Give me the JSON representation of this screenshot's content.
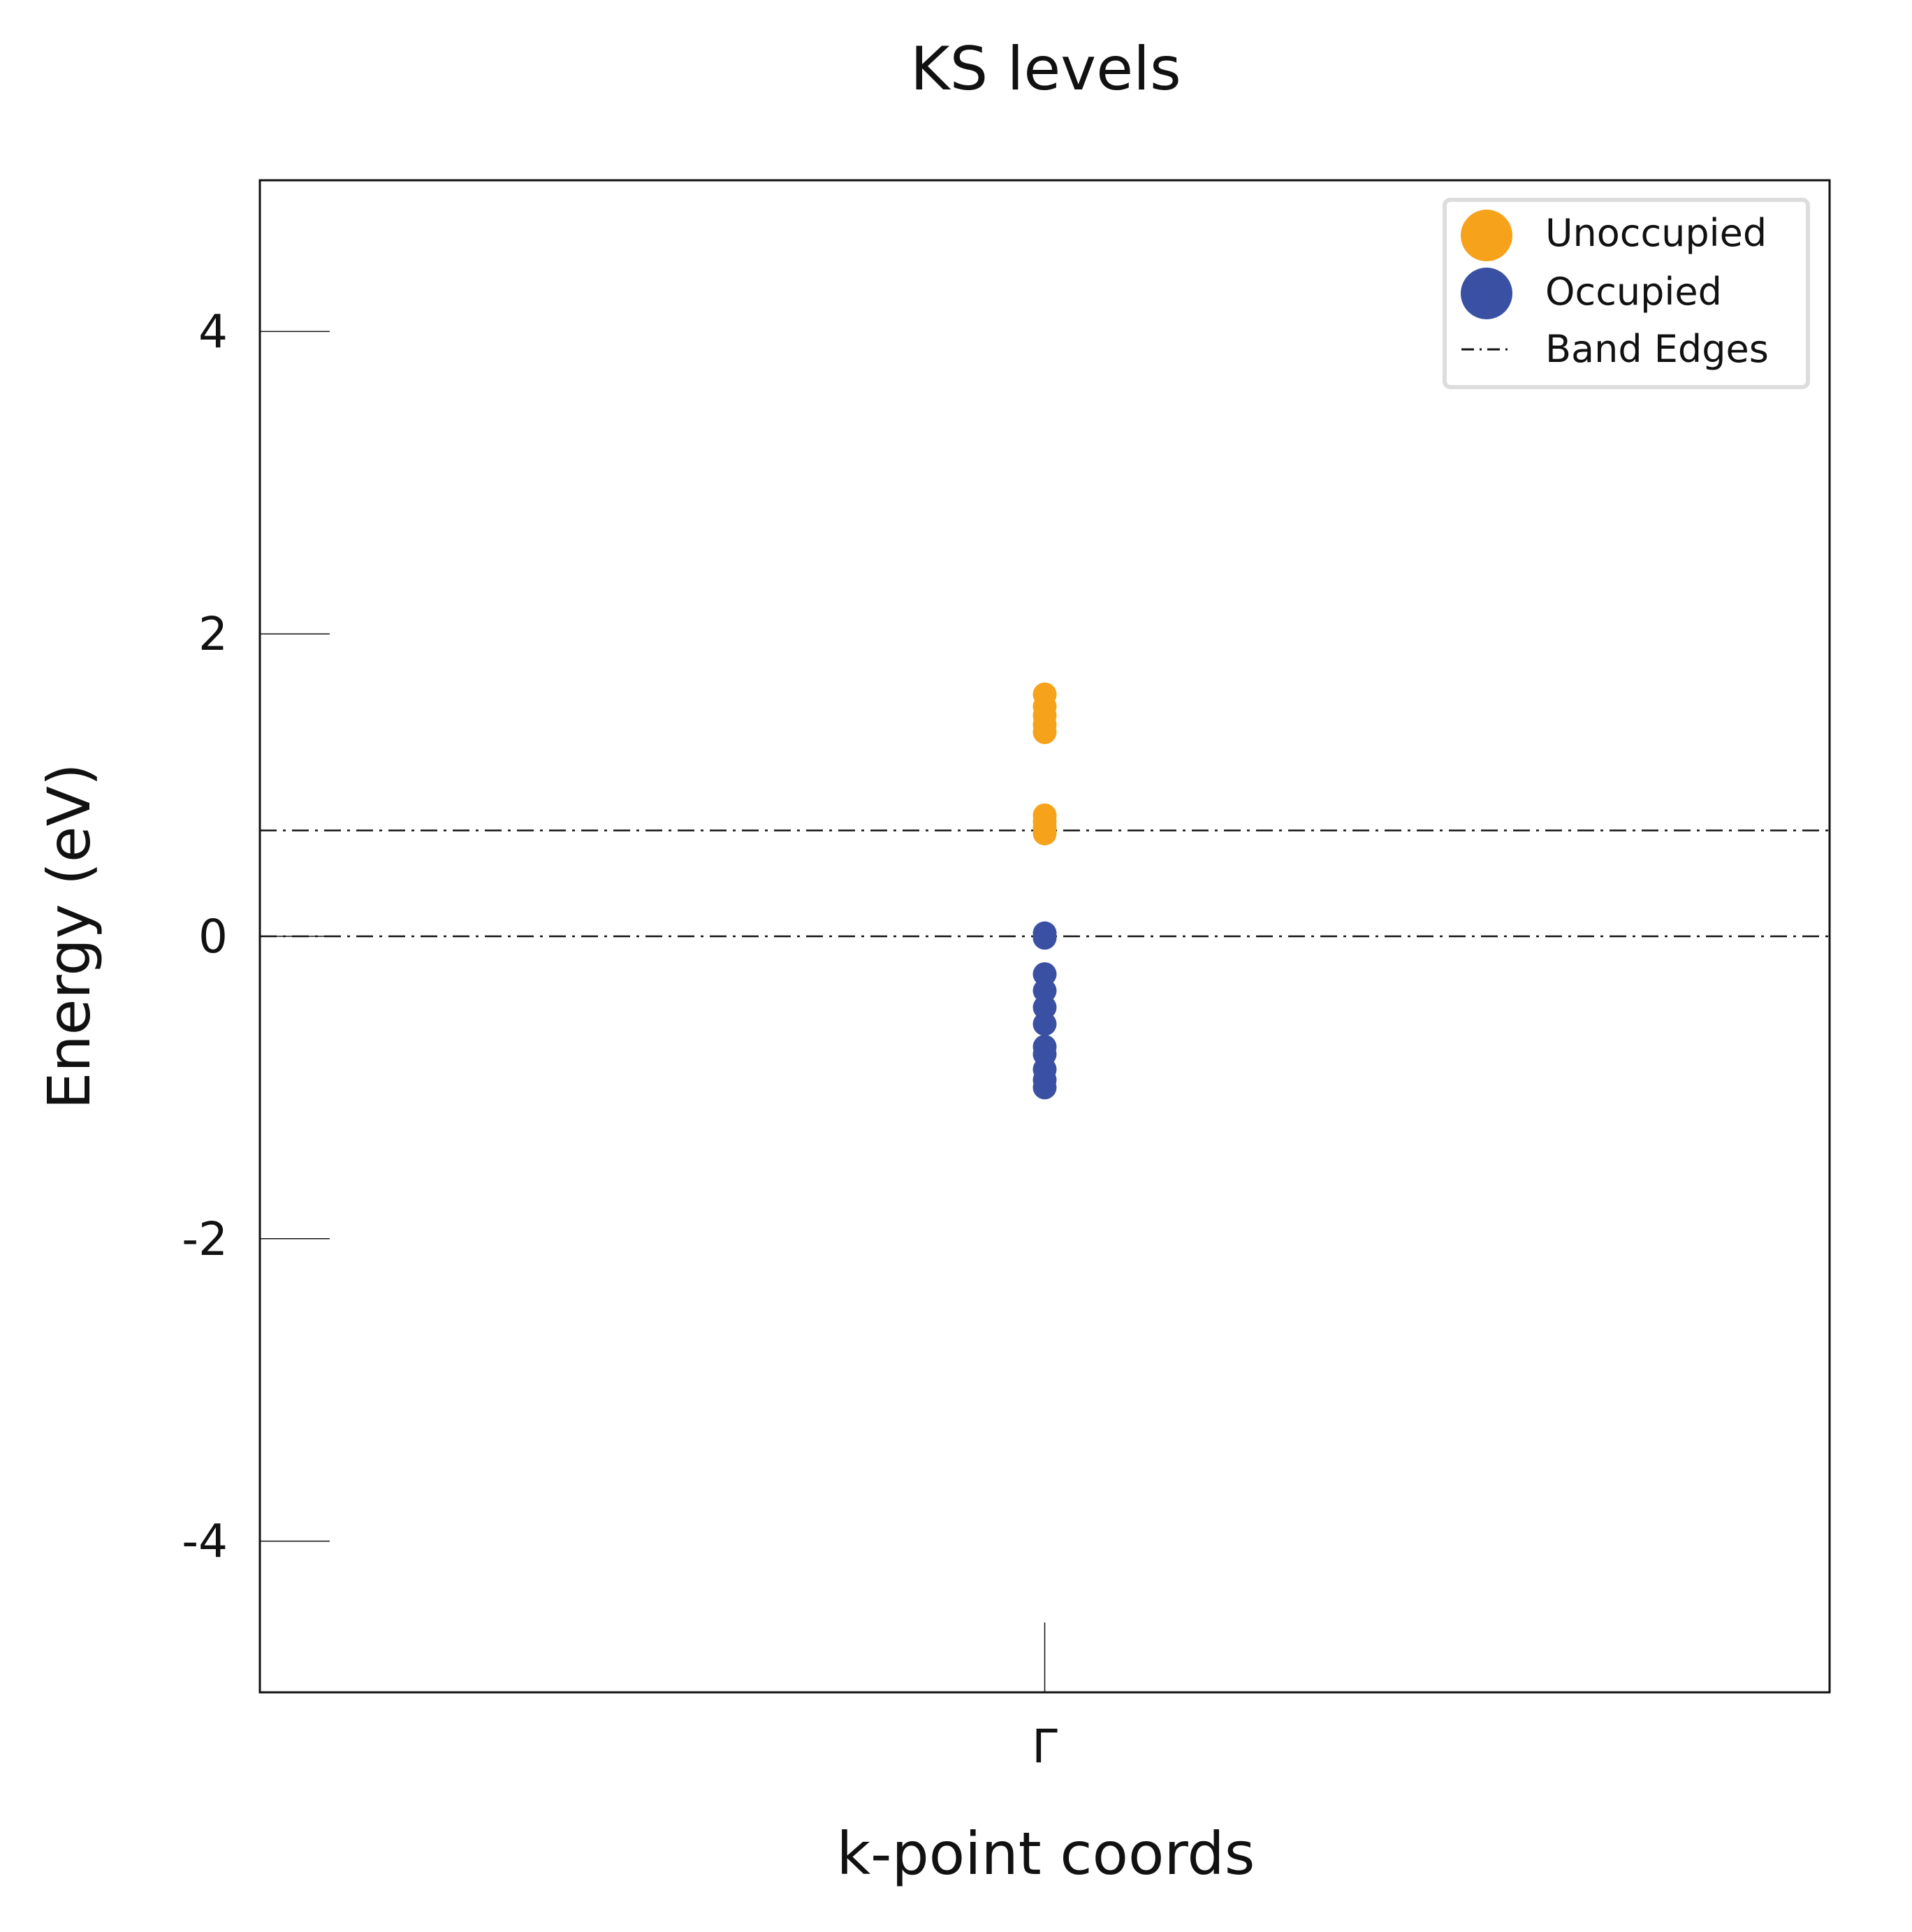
{
  "chart_data": {
    "type": "scatter",
    "title": "KS levels",
    "xlabel": "k-point coords",
    "ylabel": "Energy (eV)",
    "ylim": [
      -5,
      5
    ],
    "y_ticks": [
      {
        "value": 4,
        "label": "4"
      },
      {
        "value": 2,
        "label": "2"
      },
      {
        "value": 0,
        "label": "0"
      },
      {
        "value": -2,
        "label": "-2"
      },
      {
        "value": -4,
        "label": "-4"
      }
    ],
    "x_ticks": [
      {
        "label": "Γ"
      }
    ],
    "grid": false,
    "legend_position": "top-right",
    "series": [
      {
        "name": "Unoccupied",
        "color": "#f7a21b",
        "marker": "circle",
        "x": "Γ",
        "values": [
          1.6,
          1.52,
          1.46,
          1.4,
          1.35,
          0.8,
          0.76,
          0.72,
          0.68
        ]
      },
      {
        "name": "Occupied",
        "color": "#3a51a3",
        "marker": "circle",
        "x": "Γ",
        "values": [
          0.02,
          -0.01,
          -0.25,
          -0.36,
          -0.47,
          -0.58,
          -0.73,
          -0.78,
          -0.88,
          -0.95,
          -1.0
        ]
      }
    ],
    "band_edges": {
      "name": "Band Edges",
      "line_style": "dash-dot",
      "color": "#111111",
      "values": [
        0.7,
        0.0
      ]
    }
  }
}
